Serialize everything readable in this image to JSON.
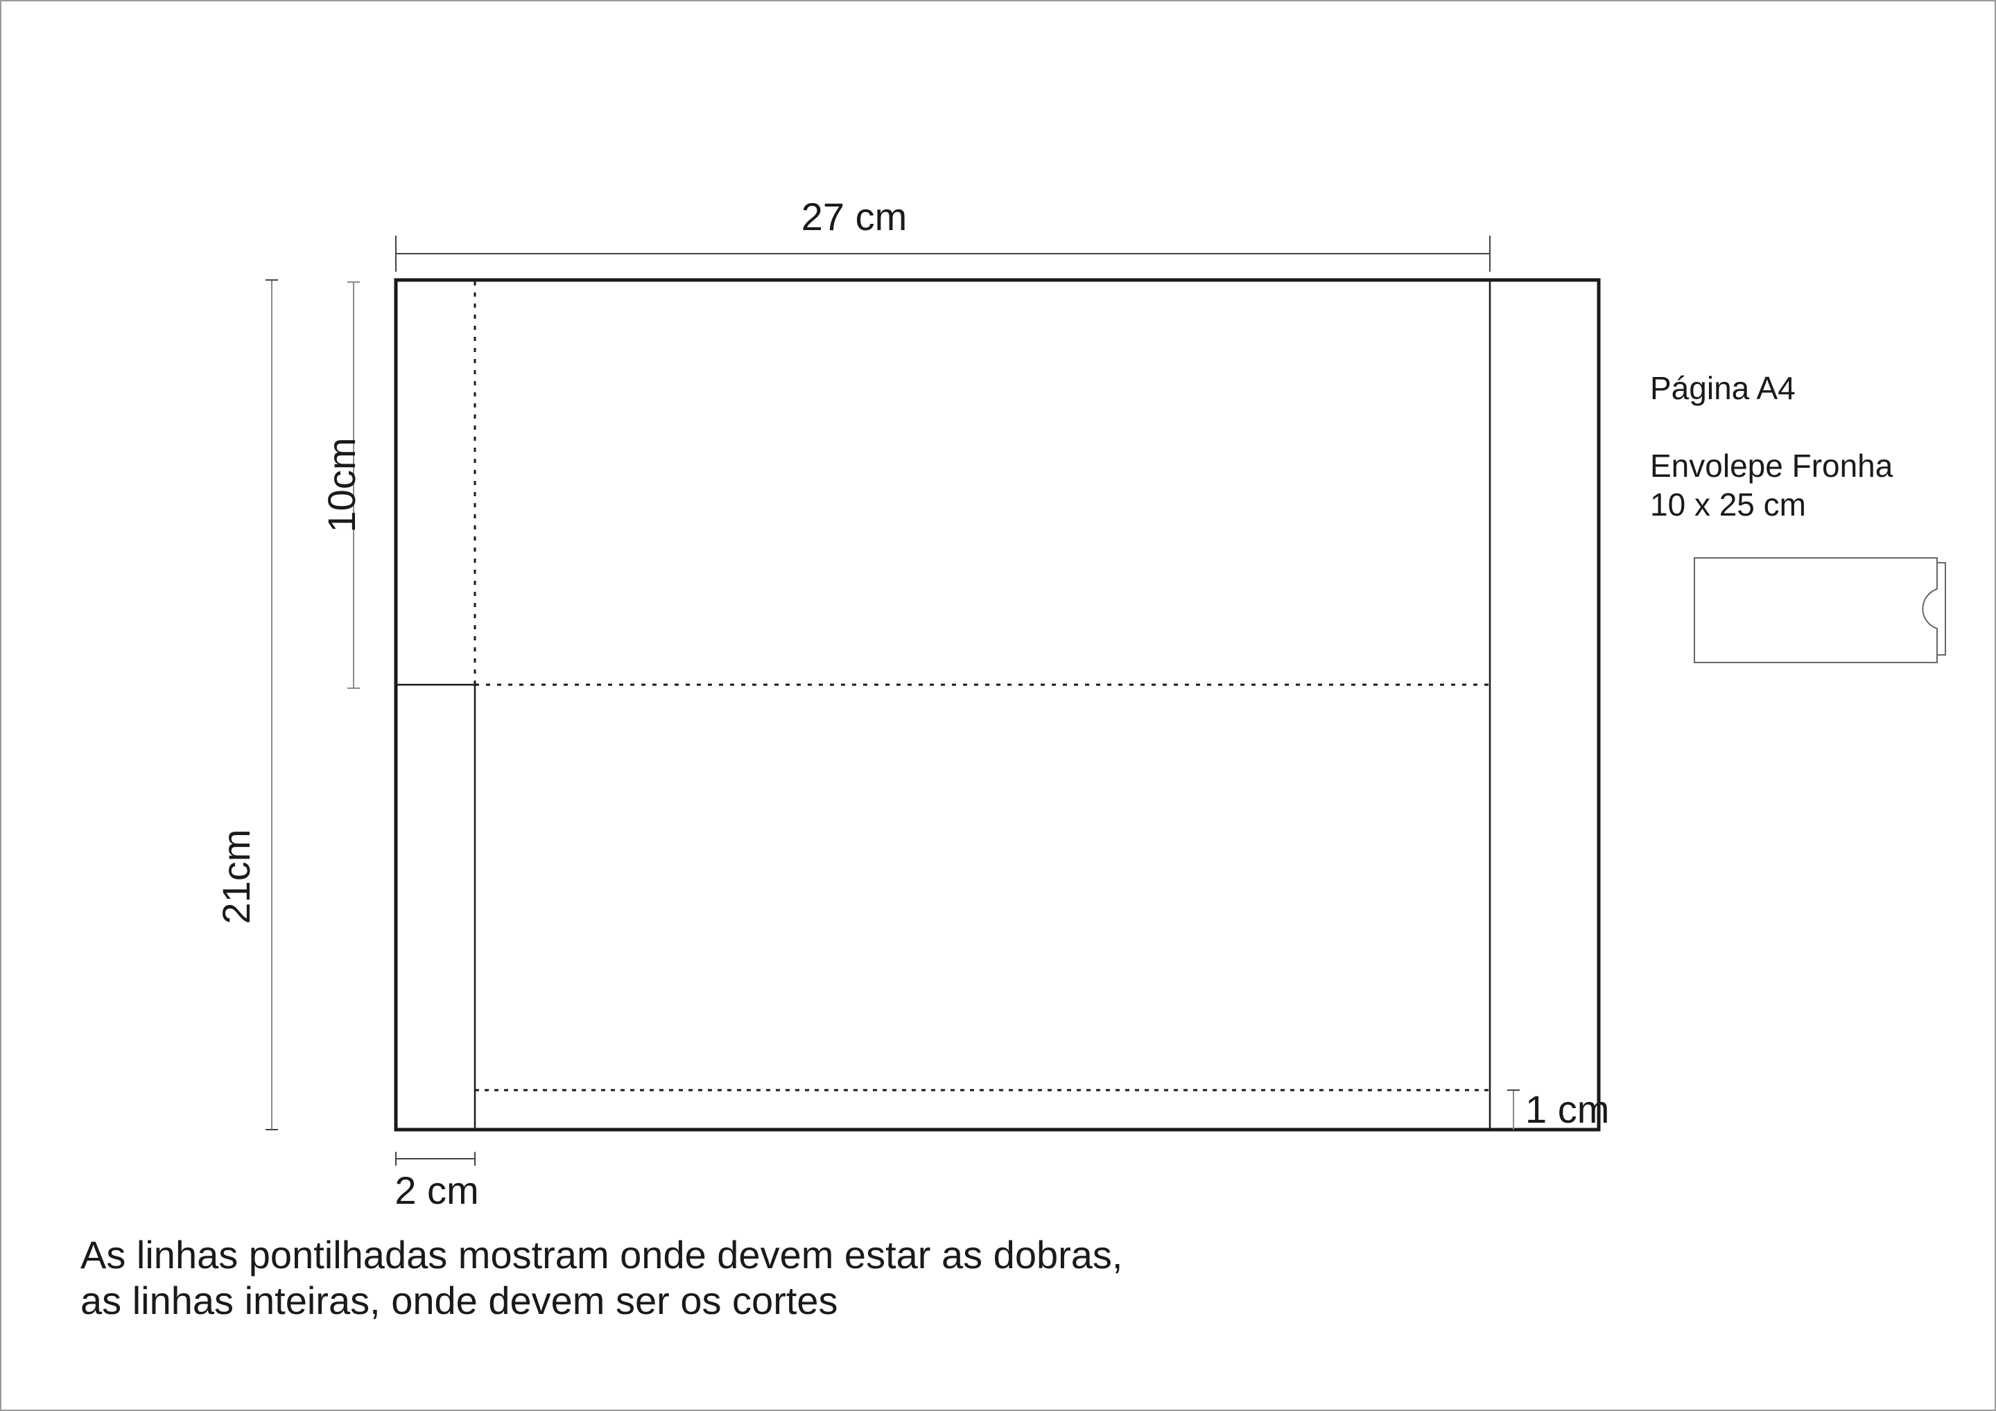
{
  "dimensions": {
    "width_label": "27 cm",
    "height_label": "21cm",
    "fold_label": "10cm",
    "side_flap_label": "2 cm",
    "bottom_flap_label": "1 cm"
  },
  "info": {
    "page_label": "Página A4",
    "title": "Envolepe Fronha",
    "size": "10 x 25 cm"
  },
  "notes": {
    "line1": "As linhas pontilhadas mostram onde devem estar as dobras,",
    "line2": "as linhas inteiras, onde devem ser os cortes"
  },
  "colors": {
    "outline": "#1a1a1a",
    "dimension": "#8a8a8a"
  }
}
